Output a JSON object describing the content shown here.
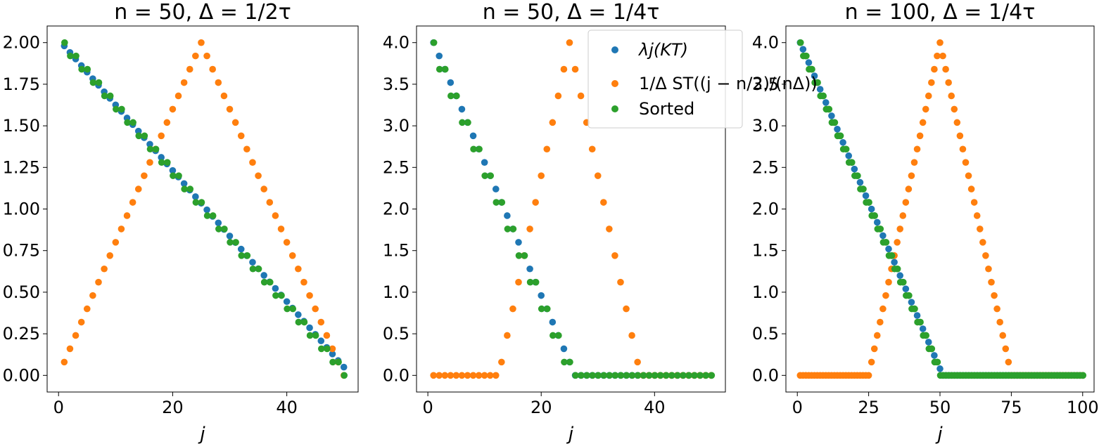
{
  "figure": {
    "description_type": "scatter panels"
  },
  "colors": {
    "blue": "#1f77b4",
    "orange": "#ff7f0e",
    "green": "#2ca02c"
  },
  "legend": {
    "placement": "upper-right of middle panel",
    "entries": [
      {
        "key": "eig",
        "label": "λj(KT)",
        "color": "#1f77b4"
      },
      {
        "key": "sym",
        "label": "1/Δ ST((j − n/2)/(nΔ))",
        "color": "#ff7f0e"
      },
      {
        "key": "sorted",
        "label": "Sorted",
        "color": "#2ca02c"
      }
    ]
  },
  "chart_data": [
    {
      "type": "scatter",
      "title": "n = 50, Δ = 1/2τ",
      "title_parts": {
        "n": "50",
        "delta": "1/2τ"
      },
      "xlabel": "j",
      "xlim": [
        -2,
        52.5
      ],
      "ylim": [
        -0.1,
        2.1
      ],
      "xticks": [
        0,
        20,
        40
      ],
      "yticks": [
        0,
        0.25,
        0.5,
        0.75,
        1.0,
        1.25,
        1.5,
        1.75,
        2.0
      ],
      "ytick_labels": [
        "0.00",
        "0.25",
        "0.50",
        "0.75",
        "1.00",
        "1.25",
        "1.50",
        "1.75",
        "2.00"
      ],
      "n": 50,
      "delta": 0.5,
      "series_generator": "eig: 2-2(j-1)/n for j=1..n (sorted desc); sym: (1/Δ)·max(0,1-|j-n/2|/(nΔ)); sorted: sym values sorted desc"
    },
    {
      "type": "scatter",
      "title": "n = 50, Δ = 1/4τ",
      "title_parts": {
        "n": "50",
        "delta": "1/4τ"
      },
      "xlabel": "j",
      "xlim": [
        -2,
        52.5
      ],
      "ylim": [
        -0.2,
        4.2
      ],
      "xticks": [
        0,
        20,
        40
      ],
      "yticks": [
        0,
        0.5,
        1.0,
        1.5,
        2.0,
        2.5,
        3.0,
        3.5,
        4.0
      ],
      "ytick_labels": [
        "0.0",
        "0.5",
        "1.0",
        "1.5",
        "2.0",
        "2.5",
        "3.0",
        "3.5",
        "4.0"
      ],
      "n": 50,
      "delta": 0.25,
      "series_generator": "eig: max(0, 4-4(j-1)/(nΔ·2)) for j=1..n; sym: (1/Δ)·max(0,1-|j-n/2|/(nΔ)); sorted: sym values sorted desc"
    },
    {
      "type": "scatter",
      "title": "n = 100, Δ = 1/4τ",
      "title_parts": {
        "n": "100",
        "delta": "1/4τ"
      },
      "xlabel": "j",
      "xlim": [
        -4,
        104
      ],
      "ylim": [
        -0.2,
        4.2
      ],
      "xticks": [
        0,
        25,
        50,
        75,
        100
      ],
      "yticks": [
        0,
        0.5,
        1.0,
        1.5,
        2.0,
        2.5,
        3.0,
        3.5,
        4.0
      ],
      "ytick_labels": [
        "0.0",
        "0.5",
        "1.0",
        "1.5",
        "2.0",
        "2.5",
        "3.0",
        "3.5",
        "4.0"
      ],
      "n": 100,
      "delta": 0.25,
      "series_generator": "eig: max(0, 4-4(j-1)/(nΔ·2)) for j=1..n; sym: (1/Δ)·max(0,1-|j-n/2|/(nΔ)); sorted: sym values sorted desc"
    }
  ]
}
